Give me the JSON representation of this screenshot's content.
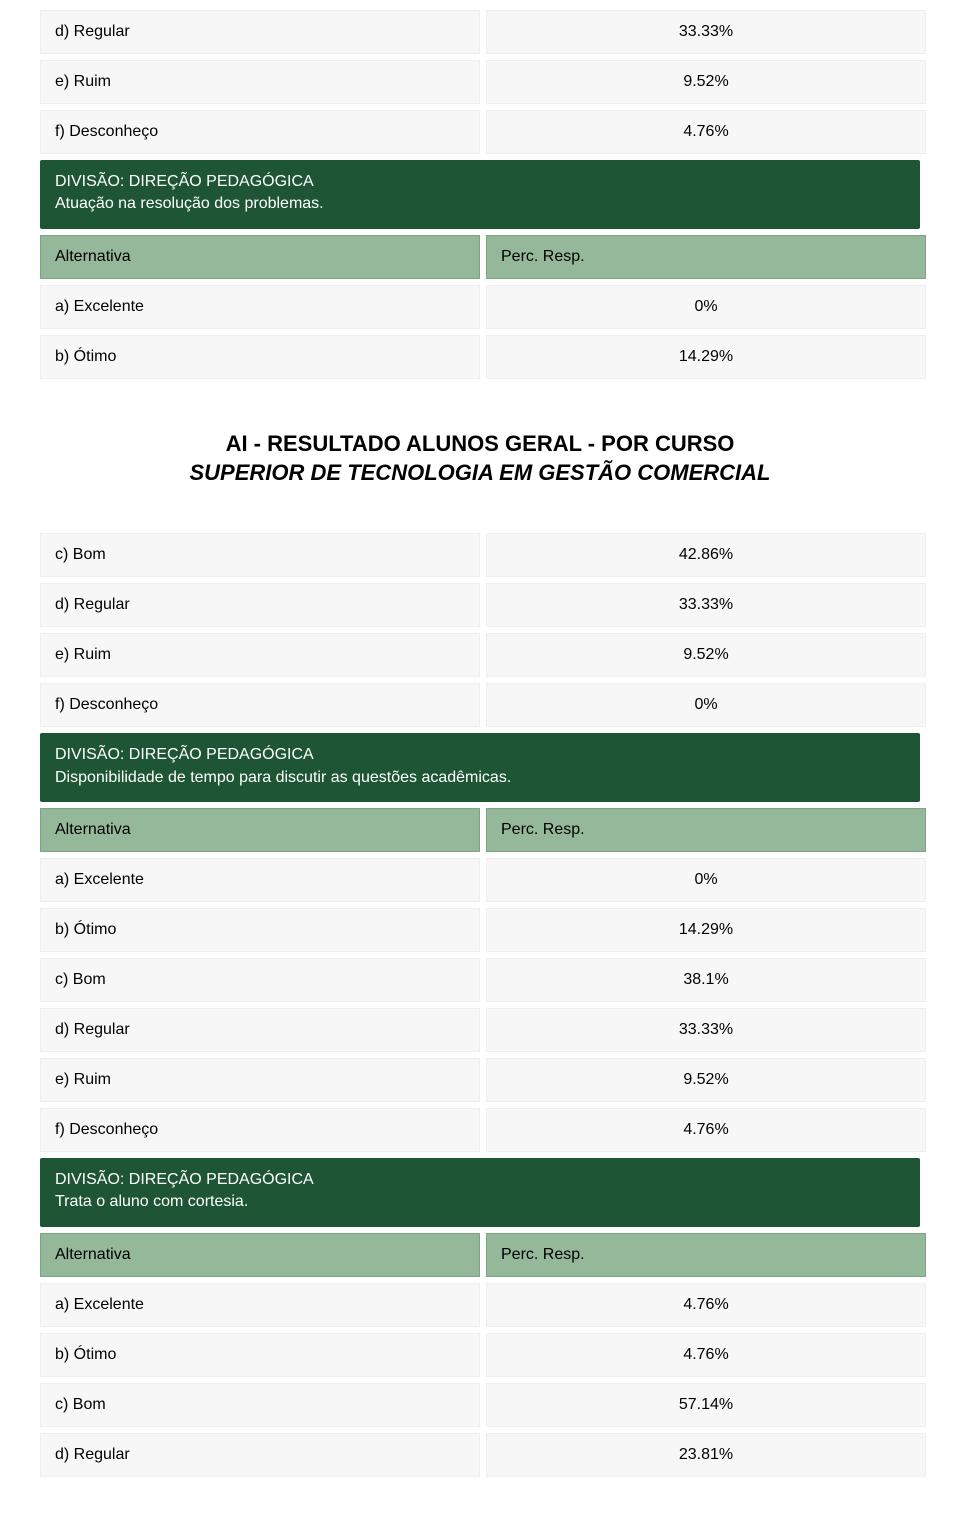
{
  "colors": {
    "section_header_bg": "#1e5635",
    "section_header_text": "#ffffff",
    "alt_row_bg": "#95b89a",
    "alt_row_border": "#7da584",
    "data_row_bg": "#f7f7f7",
    "data_row_border": "#eeeeee",
    "body_text": "#000000"
  },
  "typography": {
    "body_fontsize": 16,
    "title_fontsize": 22,
    "font_family": "Verdana"
  },
  "labels": {
    "alternativa": "Alternativa",
    "perc_resp": "Perc. Resp.",
    "divisao_tag": "DIVISÃO: DIREÇÃO PEDAGÓGICA"
  },
  "title": {
    "line1": "AI - RESULTADO ALUNOS GERAL - POR CURSO",
    "line2": "SUPERIOR DE TECNOLOGIA EM GESTÃO COMERCIAL"
  },
  "block_top": {
    "rows": [
      {
        "label": "d) Regular",
        "value": "33.33%"
      },
      {
        "label": "e) Ruim",
        "value": "9.52%"
      },
      {
        "label": "f) Desconheço",
        "value": "4.76%"
      }
    ]
  },
  "section1": {
    "desc": "Atuação na resolução dos problemas.",
    "rows": [
      {
        "label": "a) Excelente",
        "value": "0%"
      },
      {
        "label": "b) Ótimo",
        "value": "14.29%"
      }
    ],
    "rows_after_title": [
      {
        "label": "c) Bom",
        "value": "42.86%"
      },
      {
        "label": "d) Regular",
        "value": "33.33%"
      },
      {
        "label": "e) Ruim",
        "value": "9.52%"
      },
      {
        "label": "f) Desconheço",
        "value": "0%"
      }
    ]
  },
  "section2": {
    "desc": "Disponibilidade de tempo para discutir as questões acadêmicas.",
    "rows": [
      {
        "label": "a) Excelente",
        "value": "0%"
      },
      {
        "label": "b) Ótimo",
        "value": "14.29%"
      },
      {
        "label": "c) Bom",
        "value": "38.1%"
      },
      {
        "label": "d) Regular",
        "value": "33.33%"
      },
      {
        "label": "e) Ruim",
        "value": "9.52%"
      },
      {
        "label": "f) Desconheço",
        "value": "4.76%"
      }
    ]
  },
  "section3": {
    "desc": "Trata o aluno com cortesia.",
    "rows": [
      {
        "label": "a) Excelente",
        "value": "4.76%"
      },
      {
        "label": "b) Ótimo",
        "value": "4.76%"
      },
      {
        "label": "c) Bom",
        "value": "57.14%"
      },
      {
        "label": "d) Regular",
        "value": "23.81%"
      }
    ]
  }
}
